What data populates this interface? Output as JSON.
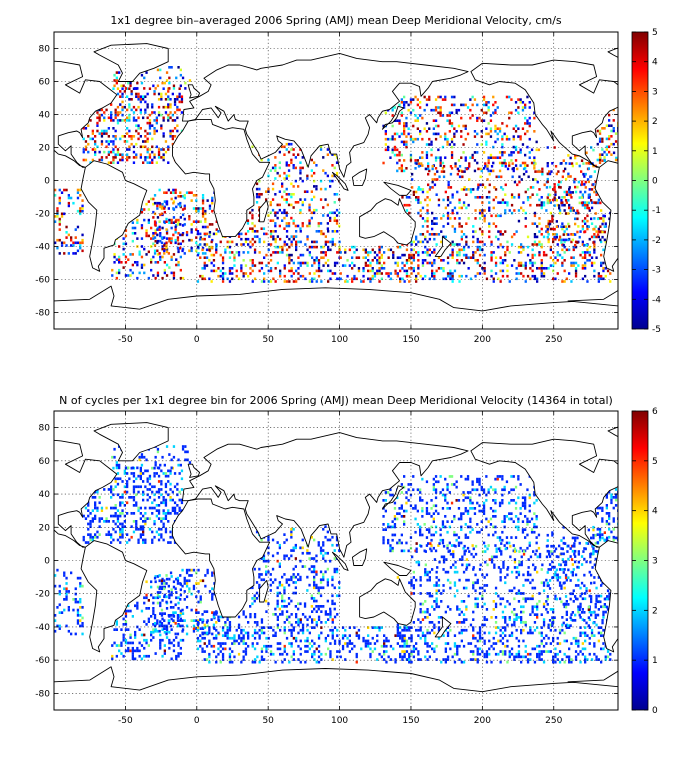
{
  "chart_data": [
    {
      "type": "heatmap",
      "title": "1x1 degree bin–averaged 2006 Spring (AMJ) mean Deep Meridional Velocity, cm/s",
      "xlabel": "",
      "ylabel": "",
      "xlim": [
        -100,
        295
      ],
      "ylim": [
        -90,
        90
      ],
      "xticks": [
        -50,
        0,
        50,
        100,
        150,
        200,
        250
      ],
      "yticks": [
        -80,
        -60,
        -40,
        -20,
        0,
        20,
        40,
        60,
        80
      ],
      "grid": true,
      "colorbar": {
        "range": [
          -5,
          5
        ],
        "ticks": [
          -5,
          -4,
          -3,
          -2,
          -1,
          0,
          1,
          2,
          3,
          4,
          5
        ],
        "colormap": "jet",
        "placement": "right"
      },
      "value_range": [
        -5,
        5
      ],
      "value_distribution": "roughly symmetric about 0; extreme values (±5) frequent in Southern Ocean and western boundary currents"
    },
    {
      "type": "heatmap",
      "title": "N of cycles per 1x1 degree bin for 2006 Spring (AMJ) mean Deep Meridional Velocity (14364 in total)",
      "xlabel": "",
      "ylabel": "",
      "xlim": [
        -100,
        295
      ],
      "ylim": [
        -90,
        90
      ],
      "xticks": [
        -50,
        0,
        50,
        100,
        150,
        200,
        250
      ],
      "yticks": [
        -80,
        -60,
        -40,
        -20,
        0,
        20,
        40,
        60,
        80
      ],
      "grid": true,
      "colorbar": {
        "range": [
          0,
          6
        ],
        "ticks": [
          0,
          1,
          2,
          3,
          4,
          5,
          6
        ],
        "colormap": "jet",
        "placement": "right"
      },
      "value_range": [
        1,
        6
      ],
      "value_distribution": "mostly 1 cycle per bin, fewer with 2–3, rare 4–6",
      "total_cycles": 14364
    }
  ],
  "colors": {
    "background": "#ffffff",
    "land": "#ffffff",
    "coast": "#000000",
    "colormap": "jet"
  }
}
